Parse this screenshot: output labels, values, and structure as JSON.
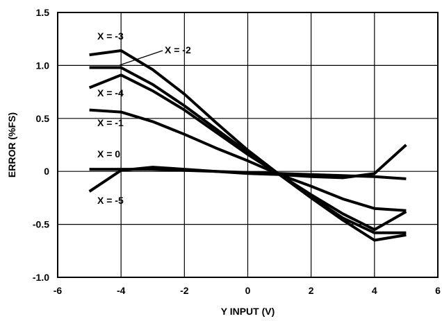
{
  "chart_data": {
    "type": "line",
    "xlabel": "Y INPUT (V)",
    "ylabel": "ERROR (%FS)",
    "xlim": [
      -6,
      6
    ],
    "ylim": [
      -1.0,
      1.5
    ],
    "x_ticks": [
      "-6",
      "-4",
      "-2",
      "0",
      "2",
      "4",
      "6"
    ],
    "y_ticks": [
      "1.5",
      "1.0",
      "0.5",
      "0",
      "-0.5",
      "-1.0"
    ],
    "grid": true,
    "series": [
      {
        "name": "X = -3",
        "x": [
          -5,
          -4,
          -3,
          -2,
          -1,
          0,
          1,
          2,
          3,
          4,
          5
        ],
        "y": [
          1.1,
          1.14,
          0.96,
          0.73,
          0.46,
          0.2,
          -0.03,
          -0.25,
          -0.46,
          -0.65,
          -0.6
        ]
      },
      {
        "name": "X = -2",
        "x": [
          -5,
          -4,
          -3,
          -2,
          -1,
          0,
          1,
          2,
          3,
          4,
          5
        ],
        "y": [
          0.98,
          0.98,
          0.82,
          0.62,
          0.4,
          0.18,
          -0.03,
          -0.24,
          -0.44,
          -0.58,
          -0.58
        ]
      },
      {
        "name": "X = -4",
        "x": [
          -5,
          -4,
          -3,
          -2,
          -1,
          0,
          1,
          2,
          3,
          4,
          5
        ],
        "y": [
          0.79,
          0.91,
          0.76,
          0.58,
          0.37,
          0.16,
          -0.03,
          -0.22,
          -0.4,
          -0.55,
          -0.38
        ]
      },
      {
        "name": "X = -1",
        "x": [
          -5,
          -4,
          -3,
          -2,
          -1,
          0,
          1,
          2,
          3,
          4,
          5
        ],
        "y": [
          0.58,
          0.56,
          0.47,
          0.35,
          0.22,
          0.1,
          -0.03,
          -0.14,
          -0.26,
          -0.35,
          -0.37
        ]
      },
      {
        "name": "X = 0",
        "x": [
          -5,
          -4,
          -3,
          -2,
          -1,
          0,
          1,
          2,
          3,
          4,
          5
        ],
        "y": [
          0.02,
          0.02,
          0.02,
          0.01,
          0.0,
          -0.01,
          -0.02,
          -0.03,
          -0.04,
          -0.05,
          -0.07
        ]
      },
      {
        "name": "X = -5",
        "x": [
          -5,
          -4,
          -3,
          -2,
          -1,
          0,
          1,
          2,
          3,
          4,
          5
        ],
        "y": [
          -0.19,
          0.01,
          0.04,
          0.02,
          0.0,
          -0.02,
          -0.03,
          -0.05,
          -0.06,
          -0.02,
          0.25
        ]
      }
    ],
    "labels": [
      {
        "text": "X = -3",
        "series": "X = -3"
      },
      {
        "text": "X = -2",
        "series": "X = -2"
      },
      {
        "text": "X = -4",
        "series": "X = -4"
      },
      {
        "text": "X = -1",
        "series": "X = -1"
      },
      {
        "text": "X = 0",
        "series": "X = 0"
      },
      {
        "text": "X = -5",
        "series": "X = -5"
      }
    ]
  }
}
